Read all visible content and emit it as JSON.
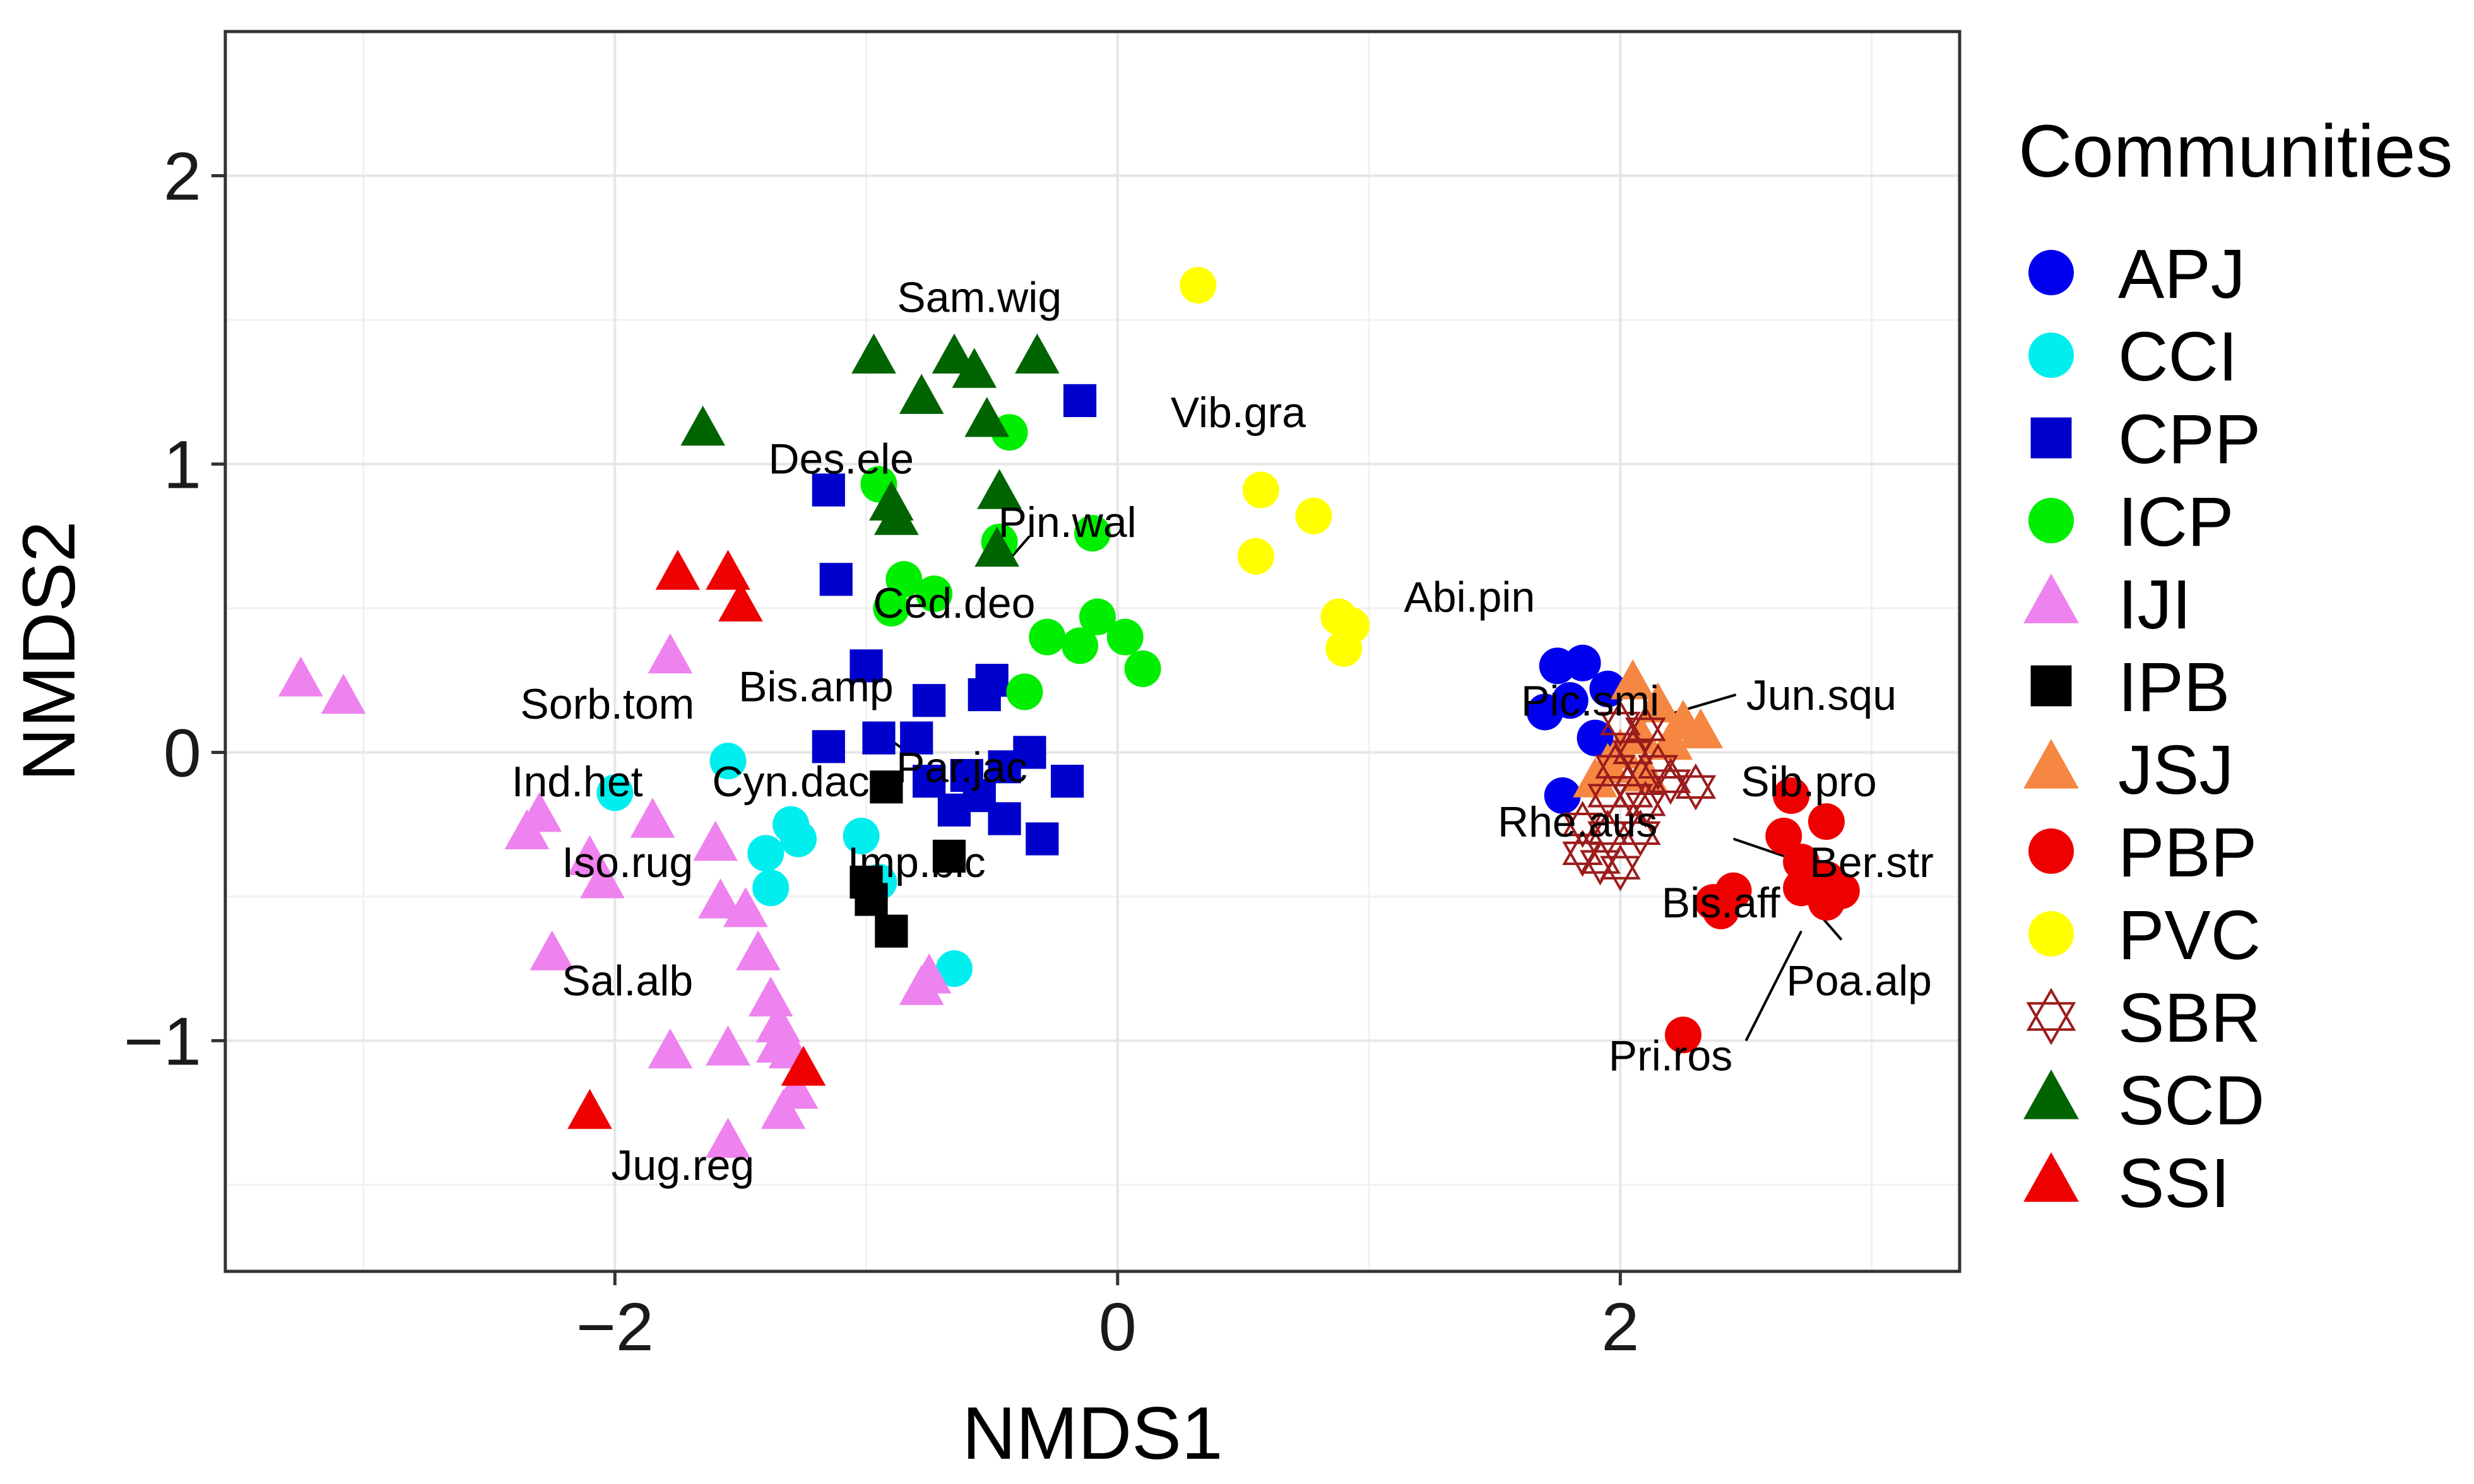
{
  "chart_data": {
    "type": "scatter",
    "title": "",
    "xlabel": "NMDS1",
    "ylabel": "NMDS2",
    "xlim": [
      -3.55,
      3.35
    ],
    "ylim": [
      -1.8,
      2.5
    ],
    "xticks": [
      -2,
      0,
      2
    ],
    "yticks": [
      -1,
      0,
      1,
      2
    ],
    "xtick_labels": [
      "−2",
      "0",
      "2"
    ],
    "ytick_labels": [
      "−1",
      "0",
      "1",
      "2"
    ],
    "grid": true,
    "legend": {
      "title": "Communities",
      "position": "right"
    },
    "series": [
      {
        "name": "APJ",
        "color": "#0000ee",
        "marker": "circle",
        "points": [
          [
            1.75,
            0.3
          ],
          [
            1.85,
            0.31
          ],
          [
            1.7,
            0.14
          ],
          [
            1.8,
            0.18
          ],
          [
            1.95,
            0.22
          ],
          [
            1.77,
            -0.15
          ],
          [
            1.9,
            0.05
          ]
        ]
      },
      {
        "name": "CCI",
        "color": "#00eeee",
        "marker": "circle",
        "points": [
          [
            -1.55,
            -0.03
          ],
          [
            -2.0,
            -0.14
          ],
          [
            -1.3,
            -0.25
          ],
          [
            -1.27,
            -0.3
          ],
          [
            -1.4,
            -0.35
          ],
          [
            -1.38,
            -0.47
          ],
          [
            -1.02,
            -0.29
          ],
          [
            -0.95,
            -0.45
          ],
          [
            -0.65,
            -0.75
          ]
        ]
      },
      {
        "name": "CPP",
        "color": "#0000cc",
        "marker": "square",
        "points": [
          [
            -0.15,
            1.22
          ],
          [
            -1.15,
            0.91
          ],
          [
            -1.12,
            0.6
          ],
          [
            -1.0,
            0.3
          ],
          [
            -0.75,
            0.18
          ],
          [
            -0.5,
            0.25
          ],
          [
            -0.53,
            0.2
          ],
          [
            -0.95,
            0.05
          ],
          [
            -0.8,
            0.05
          ],
          [
            -1.15,
            0.02
          ],
          [
            -0.35,
            0.0
          ],
          [
            -0.2,
            -0.1
          ],
          [
            -0.75,
            -0.1
          ],
          [
            -0.6,
            -0.08
          ],
          [
            -0.45,
            -0.05
          ],
          [
            -0.65,
            -0.2
          ],
          [
            -0.45,
            -0.23
          ],
          [
            -0.3,
            -0.3
          ],
          [
            -0.55,
            -0.15
          ]
        ]
      },
      {
        "name": "ICP",
        "color": "#00ee00",
        "marker": "circle",
        "points": [
          [
            -0.43,
            1.11
          ],
          [
            -0.95,
            0.93
          ],
          [
            -0.1,
            0.76
          ],
          [
            -0.85,
            0.6
          ],
          [
            -0.9,
            0.5
          ],
          [
            -0.73,
            0.55
          ],
          [
            -0.08,
            0.47
          ],
          [
            -0.28,
            0.4
          ],
          [
            -0.15,
            0.37
          ],
          [
            0.03,
            0.4
          ],
          [
            0.1,
            0.29
          ],
          [
            -0.37,
            0.21
          ],
          [
            -0.47,
            0.73
          ]
        ]
      },
      {
        "name": "IJI",
        "color": "#ee82ee",
        "marker": "triangle",
        "points": [
          [
            -3.25,
            0.25
          ],
          [
            -3.08,
            0.19
          ],
          [
            -1.78,
            0.33
          ],
          [
            -2.3,
            -0.22
          ],
          [
            -2.35,
            -0.28
          ],
          [
            -1.85,
            -0.24
          ],
          [
            -2.1,
            -0.37
          ],
          [
            -2.05,
            -0.45
          ],
          [
            -1.6,
            -0.32
          ],
          [
            -1.58,
            -0.52
          ],
          [
            -1.48,
            -0.55
          ],
          [
            -1.43,
            -0.7
          ],
          [
            -2.25,
            -0.7
          ],
          [
            -1.38,
            -0.86
          ],
          [
            -1.35,
            -0.95
          ],
          [
            -1.78,
            -1.04
          ],
          [
            -1.55,
            -1.03
          ],
          [
            -1.35,
            -1.02
          ],
          [
            -1.3,
            -1.04
          ],
          [
            -1.28,
            -1.18
          ],
          [
            -1.33,
            -1.25
          ],
          [
            -1.55,
            -1.35
          ],
          [
            -0.75,
            -0.78
          ],
          [
            -0.78,
            -0.82
          ]
        ]
      },
      {
        "name": "IPB",
        "color": "#000000",
        "marker": "square",
        "points": [
          [
            -0.92,
            -0.12
          ],
          [
            -0.67,
            -0.36
          ],
          [
            -1.0,
            -0.45
          ],
          [
            -0.98,
            -0.51
          ],
          [
            -0.9,
            -0.62
          ]
        ]
      },
      {
        "name": "JSJ",
        "color": "#f58742",
        "marker": "triangle",
        "points": [
          [
            2.05,
            0.24
          ],
          [
            2.15,
            0.16
          ],
          [
            2.25,
            0.1
          ],
          [
            2.32,
            0.07
          ],
          [
            2.2,
            0.03
          ],
          [
            2.08,
            0.05
          ],
          [
            2.0,
            0.0
          ],
          [
            1.95,
            -0.05
          ],
          [
            2.1,
            -0.08
          ],
          [
            1.9,
            -0.1
          ]
        ]
      },
      {
        "name": "PBP",
        "color": "#ee0000",
        "marker": "circle",
        "points": [
          [
            2.68,
            -0.15
          ],
          [
            2.82,
            -0.24
          ],
          [
            2.65,
            -0.29
          ],
          [
            2.72,
            -0.38
          ],
          [
            2.72,
            -0.47
          ],
          [
            2.82,
            -0.44
          ],
          [
            2.88,
            -0.48
          ],
          [
            2.82,
            -0.52
          ],
          [
            2.45,
            -0.48
          ],
          [
            2.37,
            -0.52
          ],
          [
            2.4,
            -0.55
          ],
          [
            2.25,
            -0.98
          ]
        ]
      },
      {
        "name": "PVC",
        "color": "#ffff00",
        "marker": "circle",
        "points": [
          [
            0.32,
            1.62
          ],
          [
            0.57,
            0.91
          ],
          [
            0.78,
            0.82
          ],
          [
            0.55,
            0.68
          ],
          [
            0.88,
            0.47
          ],
          [
            0.93,
            0.44
          ],
          [
            0.9,
            0.36
          ]
        ]
      },
      {
        "name": "SBR",
        "color": "#9b1c1c",
        "marker": "star6",
        "points": [
          [
            2.0,
            0.1
          ],
          [
            2.1,
            0.08
          ],
          [
            2.05,
            0.0
          ],
          [
            2.15,
            -0.05
          ],
          [
            1.95,
            -0.15
          ],
          [
            2.05,
            -0.15
          ],
          [
            2.2,
            -0.1
          ],
          [
            2.3,
            -0.12
          ],
          [
            1.85,
            -0.25
          ],
          [
            1.95,
            -0.28
          ],
          [
            2.08,
            -0.28
          ],
          [
            1.92,
            -0.38
          ],
          [
            2.0,
            -0.4
          ],
          [
            1.85,
            -0.35
          ],
          [
            2.1,
            -0.18
          ],
          [
            1.98,
            -0.05
          ]
        ]
      },
      {
        "name": "SCD",
        "color": "#006400",
        "marker": "triangle",
        "points": [
          [
            -0.97,
            1.37
          ],
          [
            -0.65,
            1.37
          ],
          [
            -0.32,
            1.37
          ],
          [
            -0.57,
            1.32
          ],
          [
            -0.78,
            1.23
          ],
          [
            -0.52,
            1.15
          ],
          [
            -1.65,
            1.12
          ],
          [
            -0.47,
            0.9
          ],
          [
            -0.9,
            0.86
          ],
          [
            -0.88,
            0.81
          ],
          [
            -0.48,
            0.7
          ]
        ]
      },
      {
        "name": "SSI",
        "color": "#ee0000",
        "marker": "triangle",
        "points": [
          [
            -1.75,
            0.62
          ],
          [
            -1.55,
            0.62
          ],
          [
            -1.5,
            0.51
          ],
          [
            -2.1,
            -1.25
          ],
          [
            -1.25,
            -1.1
          ]
        ]
      }
    ],
    "species_labels": [
      {
        "text": "Sam.wig",
        "x": -0.55,
        "y": 1.58
      },
      {
        "text": "Vib.gra",
        "x": 0.48,
        "y": 1.18
      },
      {
        "text": "Des.ele",
        "x": -1.1,
        "y": 1.02
      },
      {
        "text": "Pin.wal",
        "x": -0.2,
        "y": 0.8
      },
      {
        "text": "Ced.deo",
        "x": -0.65,
        "y": 0.52
      },
      {
        "text": "Abi.pin",
        "x": 1.4,
        "y": 0.54
      },
      {
        "text": "Bis.amp",
        "x": -1.2,
        "y": 0.23
      },
      {
        "text": "Sorb.tom",
        "x": -2.03,
        "y": 0.17
      },
      {
        "text": "Par.jac",
        "x": -0.62,
        "y": -0.05
      },
      {
        "text": "Ind.het",
        "x": -2.15,
        "y": -0.1
      },
      {
        "text": "Cyn.dac",
        "x": -1.3,
        "y": -0.1
      },
      {
        "text": "Iso.rug",
        "x": -1.95,
        "y": -0.38
      },
      {
        "text": "Imp.bic",
        "x": -0.8,
        "y": -0.38
      },
      {
        "text": "Sal.alb",
        "x": -1.95,
        "y": -0.79
      },
      {
        "text": "Jug.reg",
        "x": -1.73,
        "y": -1.43
      },
      {
        "text": "Pic.smi",
        "x": 1.88,
        "y": 0.18
      },
      {
        "text": "Jun.squ",
        "x": 2.8,
        "y": 0.2
      },
      {
        "text": "Sib.pro",
        "x": 2.75,
        "y": -0.1
      },
      {
        "text": "Rhe.aus",
        "x": 1.83,
        "y": -0.24
      },
      {
        "text": "Ber.str",
        "x": 3.0,
        "y": -0.38
      },
      {
        "text": "Bis.aff",
        "x": 2.4,
        "y": -0.52
      },
      {
        "text": "Poa.alp",
        "x": 2.95,
        "y": -0.79
      },
      {
        "text": "Pri.ros",
        "x": 2.2,
        "y": -1.05
      }
    ],
    "label_segments": [
      {
        "x1": -0.45,
        "y1": 0.65,
        "x2": -0.35,
        "y2": 0.75
      },
      {
        "x1": -0.95,
        "y1": 0.07,
        "x2": -0.85,
        "y2": 0.01
      },
      {
        "x1": 2.07,
        "y1": 0.1,
        "x2": 2.46,
        "y2": 0.2
      },
      {
        "x1": 2.45,
        "y1": -0.3,
        "x2": 2.72,
        "y2": -0.38
      },
      {
        "x1": 2.78,
        "y1": -0.55,
        "x2": 2.88,
        "y2": -0.65
      },
      {
        "x1": 2.5,
        "y1": -1.0,
        "x2": 2.72,
        "y2": -0.62
      }
    ]
  }
}
